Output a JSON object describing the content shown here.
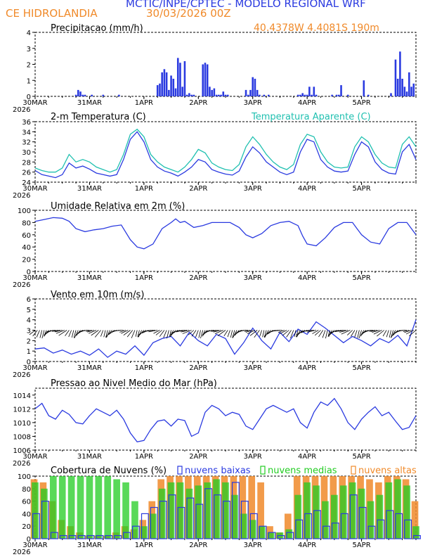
{
  "header": {
    "line1": "MCTIC/INPE/CPTEC - MODELO REGIONAL WRF",
    "location": "CE HIDROLANDIA",
    "run": "30/03/2026 00Z",
    "coords": "40.4378W 4.4081S 190m"
  },
  "colors": {
    "blue": "#2a3ae0",
    "cyan": "#20c0b0",
    "orange": "#f08a2a",
    "green": "#22cc22",
    "black": "#000000"
  },
  "x_axis": {
    "ticks": [
      "30MAR",
      "31MAR",
      "1APR",
      "2APR",
      "3APR",
      "4APR",
      "5APR"
    ],
    "year": "2026"
  },
  "chart_data": [
    {
      "id": "precip",
      "type": "bar",
      "title": "Precipitacao (mm/h)",
      "ylim": [
        0,
        4
      ],
      "yticks": [
        0,
        1,
        2,
        3,
        4
      ],
      "x_range_hours": [
        0,
        168
      ],
      "series": [
        {
          "name": "Precipitacao",
          "color": "#2a3ae0",
          "x": [
            18,
            19,
            20,
            21,
            22,
            25,
            30,
            37,
            54,
            55,
            56,
            57,
            58,
            59,
            60,
            61,
            62,
            63,
            64,
            65,
            66,
            67,
            68,
            69,
            70,
            74,
            75,
            76,
            77,
            78,
            79,
            80,
            81,
            82,
            83,
            84,
            85,
            93,
            94,
            95,
            96,
            97,
            98,
            99,
            101,
            103,
            116,
            117,
            118,
            119,
            120,
            121,
            122,
            123,
            124,
            131,
            133,
            134,
            135,
            138,
            145,
            147,
            157,
            159,
            160,
            161,
            162,
            163,
            164,
            165,
            166,
            167
          ],
          "values": [
            0.1,
            0.4,
            0.3,
            0.1,
            0.1,
            0.1,
            0.1,
            0.1,
            0.7,
            0.8,
            1.5,
            1.7,
            1.5,
            0.4,
            1.3,
            1.1,
            0.5,
            2.4,
            2.1,
            0.6,
            2.2,
            0.1,
            0.2,
            0.1,
            0.1,
            2.0,
            2.1,
            2.0,
            0.6,
            0.4,
            0.5,
            0.1,
            0.1,
            0.1,
            0.3,
            0.1,
            0.1,
            0.4,
            0.1,
            0.4,
            1.2,
            1.1,
            0.4,
            0.1,
            0.1,
            0.1,
            0.1,
            0.1,
            0.2,
            0.1,
            0.1,
            0.6,
            0.1,
            0.6,
            0.1,
            0.1,
            0.1,
            0.1,
            0.7,
            0.1,
            1.0,
            0.1,
            0.2,
            2.3,
            1.1,
            2.8,
            1.1,
            0.6,
            0.3,
            1.5,
            0.6,
            0.8
          ]
        }
      ]
    },
    {
      "id": "temp",
      "type": "line",
      "title": "2-m Temperatura (C)",
      "ylim": [
        24,
        36
      ],
      "yticks": [
        24,
        26,
        28,
        30,
        32,
        34,
        36
      ],
      "series": [
        {
          "name": "2-m Temperatura (C)",
          "color": "#2a3ae0",
          "x": [
            0,
            3,
            6,
            9,
            12,
            15,
            18,
            21,
            24,
            27,
            30,
            33,
            36,
            39,
            42,
            45,
            48,
            51,
            54,
            57,
            60,
            63,
            66,
            69,
            72,
            75,
            78,
            81,
            84,
            87,
            90,
            93,
            96,
            99,
            102,
            105,
            108,
            111,
            114,
            117,
            120,
            123,
            126,
            129,
            132,
            135,
            138,
            141,
            144,
            147,
            150,
            153,
            156,
            159,
            162,
            165,
            168
          ],
          "values": [
            26.3,
            25.5,
            25.2,
            24.9,
            25.5,
            27.8,
            26.8,
            27.2,
            26.6,
            25.8,
            25.5,
            25.2,
            25.5,
            28.5,
            32.5,
            34.0,
            32.0,
            28.5,
            27.0,
            26.2,
            25.8,
            25.2,
            26.0,
            27.0,
            28.5,
            28.0,
            26.5,
            26.0,
            25.6,
            25.4,
            26.2,
            29.0,
            31.0,
            29.8,
            28.0,
            27.0,
            26.0,
            25.5,
            26.0,
            30.0,
            32.5,
            32.0,
            28.5,
            27.0,
            26.2,
            26.0,
            26.2,
            29.5,
            32.0,
            31.0,
            28.0,
            26.5,
            25.8,
            25.6,
            30.0,
            31.5,
            28.5
          ]
        },
        {
          "name": "Temperatura Aparente (C)",
          "color": "#20c0b0",
          "x": [
            0,
            3,
            6,
            9,
            12,
            15,
            18,
            21,
            24,
            27,
            30,
            33,
            36,
            39,
            42,
            45,
            48,
            51,
            54,
            57,
            60,
            63,
            66,
            69,
            72,
            75,
            78,
            81,
            84,
            87,
            90,
            93,
            96,
            99,
            102,
            105,
            108,
            111,
            114,
            117,
            120,
            123,
            126,
            129,
            132,
            135,
            138,
            141,
            144,
            147,
            150,
            153,
            156,
            159,
            162,
            165,
            168
          ],
          "values": [
            26.8,
            26.3,
            26.0,
            26.0,
            26.8,
            29.5,
            28.0,
            28.5,
            28.0,
            27.0,
            26.5,
            26.0,
            26.5,
            29.5,
            33.5,
            34.5,
            33.0,
            29.5,
            28.0,
            27.0,
            26.5,
            26.0,
            27.0,
            28.5,
            30.5,
            29.8,
            27.8,
            27.0,
            26.5,
            26.3,
            27.5,
            31.0,
            33.0,
            31.5,
            29.5,
            28.0,
            27.0,
            26.5,
            27.5,
            31.5,
            33.5,
            33.0,
            30.0,
            28.0,
            27.0,
            26.8,
            27.0,
            31.0,
            33.0,
            32.0,
            29.5,
            27.8,
            27.0,
            26.8,
            31.5,
            33.0,
            31.0
          ]
        }
      ]
    },
    {
      "id": "rh",
      "type": "line",
      "title": "Umidade Relativa em 2m (%)",
      "ylim": [
        0,
        100
      ],
      "yticks": [
        0,
        20,
        40,
        60,
        80,
        100
      ],
      "series": [
        {
          "name": "Umidade Relativa",
          "color": "#2a3ae0",
          "x": [
            0,
            4,
            8,
            12,
            15,
            18,
            22,
            26,
            30,
            34,
            38,
            42,
            45,
            48,
            52,
            56,
            60,
            62,
            64,
            66,
            70,
            74,
            78,
            82,
            86,
            90,
            93,
            96,
            100,
            104,
            108,
            112,
            116,
            118,
            120,
            124,
            128,
            132,
            136,
            140,
            142,
            144,
            148,
            152,
            156,
            160,
            164,
            168
          ],
          "values": [
            82,
            85,
            88,
            87,
            82,
            70,
            65,
            68,
            70,
            74,
            76,
            52,
            40,
            37,
            45,
            70,
            80,
            86,
            80,
            82,
            72,
            75,
            80,
            80,
            80,
            72,
            60,
            55,
            62,
            75,
            80,
            82,
            75,
            58,
            45,
            42,
            55,
            72,
            80,
            80,
            70,
            60,
            48,
            45,
            70,
            80,
            80,
            60
          ]
        }
      ]
    },
    {
      "id": "wind",
      "type": "line",
      "title": "Vento em 10m (m/s)",
      "ylim": [
        0,
        6
      ],
      "yticks": [
        0,
        1,
        2,
        3,
        4,
        5,
        6
      ],
      "series": [
        {
          "name": "Vento em 10m",
          "color": "#2a3ae0",
          "x": [
            0,
            4,
            8,
            12,
            16,
            20,
            24,
            28,
            32,
            36,
            40,
            44,
            48,
            52,
            56,
            60,
            64,
            68,
            72,
            76,
            80,
            84,
            88,
            92,
            96,
            100,
            104,
            108,
            112,
            116,
            120,
            124,
            128,
            132,
            136,
            140,
            144,
            148,
            152,
            156,
            160,
            164,
            168
          ],
          "values": [
            1.2,
            1.3,
            0.8,
            1.1,
            0.7,
            1.0,
            0.6,
            1.2,
            0.4,
            1.0,
            0.7,
            1.5,
            0.6,
            1.8,
            2.2,
            2.4,
            1.5,
            2.8,
            2.0,
            1.5,
            2.6,
            2.2,
            0.7,
            1.8,
            3.2,
            2.0,
            1.2,
            2.8,
            1.9,
            3.1,
            2.6,
            3.8,
            3.2,
            2.5,
            1.8,
            2.4,
            2.0,
            1.5,
            2.2,
            1.8,
            2.5,
            1.5,
            4.0
          ]
        }
      ]
    },
    {
      "id": "pressure",
      "type": "line",
      "title": "Pressao ao Nivel Medio do Mar (hPa)",
      "ylim": [
        1006,
        1015
      ],
      "yticks": [
        1006,
        1008,
        1010,
        1012,
        1014
      ],
      "series": [
        {
          "name": "Pressao",
          "color": "#2a3ae0",
          "x": [
            0,
            3,
            6,
            9,
            12,
            15,
            18,
            21,
            24,
            27,
            30,
            33,
            36,
            39,
            42,
            45,
            48,
            51,
            54,
            57,
            60,
            63,
            66,
            69,
            72,
            75,
            78,
            81,
            84,
            87,
            90,
            93,
            96,
            99,
            102,
            105,
            108,
            111,
            114,
            117,
            120,
            123,
            126,
            129,
            132,
            135,
            138,
            141,
            144,
            147,
            150,
            153,
            156,
            159,
            162,
            165,
            168
          ],
          "values": [
            1012.0,
            1012.8,
            1011.0,
            1010.5,
            1011.8,
            1011.2,
            1010.0,
            1009.8,
            1011.0,
            1012.0,
            1011.5,
            1011.0,
            1011.8,
            1010.5,
            1008.5,
            1007.2,
            1007.4,
            1009.0,
            1010.2,
            1010.4,
            1009.5,
            1010.5,
            1010.3,
            1008.0,
            1008.5,
            1011.5,
            1012.5,
            1012.0,
            1011.0,
            1011.5,
            1011.2,
            1009.5,
            1009.0,
            1010.5,
            1012.0,
            1012.5,
            1012.0,
            1011.5,
            1012.0,
            1010.0,
            1009.2,
            1011.5,
            1013.0,
            1012.5,
            1013.5,
            1012.0,
            1010.0,
            1009.0,
            1010.5,
            1011.5,
            1012.3,
            1011.0,
            1011.5,
            1010.2,
            1009.0,
            1009.3,
            1011.0
          ]
        }
      ]
    },
    {
      "id": "clouds",
      "type": "bar",
      "title": "Cobertura de Nuvens (%)",
      "ylim": [
        0,
        100
      ],
      "yticks": [
        0,
        20,
        40,
        60,
        80,
        100
      ],
      "legend": [
        "nuvens baixas",
        "nuvens medias",
        "nuvens altas"
      ],
      "series": [
        {
          "name": "nuvens altas",
          "color": "#f08a2a",
          "x": [
            0,
            4,
            8,
            12,
            16,
            20,
            24,
            28,
            32,
            36,
            40,
            44,
            48,
            52,
            56,
            60,
            64,
            68,
            72,
            76,
            80,
            84,
            88,
            92,
            96,
            100,
            104,
            108,
            112,
            116,
            120,
            124,
            128,
            132,
            136,
            140,
            144,
            148,
            152,
            156,
            160,
            164,
            168
          ],
          "values": [
            95,
            90,
            60,
            30,
            20,
            10,
            5,
            5,
            5,
            10,
            20,
            15,
            30,
            60,
            95,
            100,
            100,
            100,
            100,
            100,
            100,
            100,
            100,
            100,
            100,
            90,
            20,
            10,
            40,
            100,
            100,
            100,
            100,
            100,
            100,
            100,
            100,
            95,
            90,
            100,
            100,
            95,
            60
          ]
        },
        {
          "name": "nuvens medias",
          "color": "#22cc22",
          "x": [
            0,
            4,
            8,
            12,
            16,
            20,
            24,
            28,
            32,
            36,
            40,
            44,
            48,
            52,
            56,
            60,
            64,
            68,
            72,
            76,
            80,
            84,
            88,
            92,
            96,
            100,
            104,
            108,
            112,
            116,
            120,
            124,
            128,
            132,
            136,
            140,
            144,
            148,
            152,
            156,
            160,
            164,
            168
          ],
          "values": [
            90,
            80,
            100,
            100,
            100,
            100,
            100,
            100,
            100,
            95,
            90,
            60,
            20,
            40,
            80,
            90,
            90,
            80,
            85,
            90,
            95,
            90,
            70,
            40,
            30,
            20,
            10,
            10,
            15,
            70,
            90,
            85,
            60,
            70,
            85,
            90,
            80,
            60,
            70,
            90,
            95,
            85,
            20
          ]
        },
        {
          "name": "nuvens baixas",
          "color": "#2a3ae0",
          "x": [
            0,
            4,
            8,
            12,
            16,
            20,
            24,
            28,
            32,
            36,
            40,
            44,
            48,
            52,
            56,
            60,
            64,
            68,
            72,
            76,
            80,
            84,
            88,
            92,
            96,
            100,
            104,
            108,
            112,
            116,
            120,
            124,
            128,
            132,
            136,
            140,
            144,
            148,
            152,
            156,
            160,
            164,
            168
          ],
          "values": [
            40,
            60,
            10,
            5,
            5,
            5,
            5,
            5,
            5,
            5,
            10,
            20,
            40,
            50,
            60,
            70,
            50,
            65,
            55,
            80,
            70,
            60,
            90,
            60,
            40,
            20,
            10,
            5,
            10,
            30,
            40,
            45,
            20,
            25,
            40,
            70,
            50,
            20,
            30,
            45,
            40,
            30,
            5
          ]
        }
      ]
    }
  ]
}
